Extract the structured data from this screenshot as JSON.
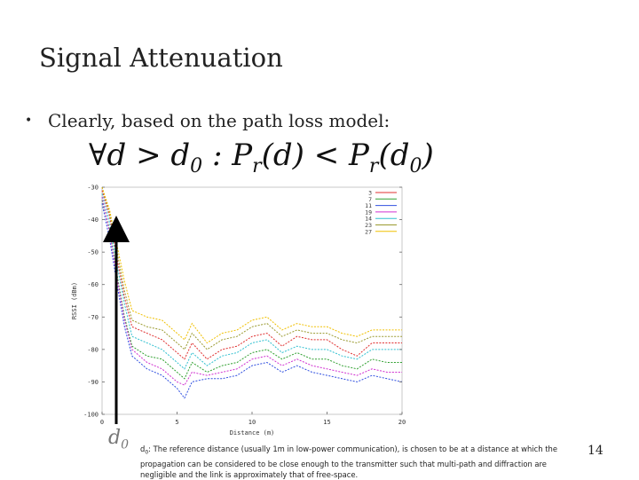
{
  "slide": {
    "title": "Signal Attenuation",
    "bullet": "Clearly, based on the path loss model:",
    "formula": {
      "part1": "∀d > d",
      "part1_sub": "0",
      "part2": " :  P",
      "part2_sub": "r",
      "part3": "(d)  <  P",
      "part3_sub": "r",
      "part4": "(d",
      "part4_sub": "0",
      "part5": ")"
    },
    "d0_label": "d",
    "d0_label_sub": "0",
    "note_prefix": "d",
    "note_prefix_sub": "0",
    "note": ": The reference distance (usually 1m in low-power communication), is chosen to be at a distance at which the propagation can be considered to be close enough to the transmitter such that multi-path and diffraction are negligible and the link is approximately that of free-space.",
    "page_number": "14"
  },
  "chart_data": {
    "type": "line",
    "xlabel": "Distance (m)",
    "ylabel": "RSSI (dBm)",
    "xlim": [
      0,
      20
    ],
    "ylim": [
      -100,
      -30
    ],
    "xticks": [
      "0",
      "5",
      "10",
      "15",
      "20"
    ],
    "yticks": [
      "-30",
      "-40",
      "-50",
      "-60",
      "-70",
      "-80",
      "-90",
      "-100"
    ],
    "x": [
      0,
      0.5,
      1,
      1.5,
      2,
      3,
      4,
      5,
      5.5,
      6,
      7,
      8,
      9,
      10,
      11,
      12,
      13,
      14,
      15,
      16,
      17,
      18,
      19,
      20
    ],
    "series": [
      {
        "name": "3",
        "color": "#e03030",
        "values": [
          -31,
          -39,
          -52,
          -64,
          -73,
          -75,
          -77,
          -81,
          -83,
          -78,
          -83,
          -80,
          -79,
          -76,
          -75,
          -79,
          -76,
          -77,
          -77,
          -80,
          -82,
          -78,
          -78,
          -78
        ]
      },
      {
        "name": "7",
        "color": "#30a030",
        "values": [
          -34,
          -43,
          -57,
          -70,
          -79,
          -82,
          -83,
          -87,
          -89,
          -84,
          -87,
          -85,
          -84,
          -81,
          -80,
          -83,
          -81,
          -83,
          -83,
          -85,
          -86,
          -83,
          -84,
          -84
        ]
      },
      {
        "name": "11",
        "color": "#3050e0",
        "values": [
          -35,
          -46,
          -60,
          -73,
          -82,
          -86,
          -88,
          -92,
          -95,
          -90,
          -89,
          -89,
          -88,
          -85,
          -84,
          -87,
          -85,
          -87,
          -88,
          -89,
          -90,
          -88,
          -89,
          -90
        ]
      },
      {
        "name": "19",
        "color": "#d030d0",
        "values": [
          -33,
          -44,
          -58,
          -71,
          -80,
          -84,
          -86,
          -90,
          -91,
          -87,
          -88,
          -87,
          -86,
          -83,
          -82,
          -85,
          -83,
          -85,
          -86,
          -87,
          -88,
          -86,
          -87,
          -87
        ]
      },
      {
        "name": "14",
        "color": "#30c0d0",
        "values": [
          -32,
          -41,
          -54,
          -66,
          -76,
          -78,
          -80,
          -84,
          -86,
          -81,
          -85,
          -82,
          -81,
          -78,
          -77,
          -81,
          -79,
          -80,
          -80,
          -82,
          -83,
          -80,
          -80,
          -80
        ]
      },
      {
        "name": "23",
        "color": "#9a9a30",
        "values": [
          -30,
          -38,
          -50,
          -62,
          -71,
          -73,
          -74,
          -78,
          -80,
          -75,
          -80,
          -77,
          -76,
          -73,
          -72,
          -76,
          -74,
          -75,
          -75,
          -77,
          -78,
          -76,
          -76,
          -76
        ]
      },
      {
        "name": "27",
        "color": "#f0c000",
        "values": [
          -30,
          -37,
          -48,
          -59,
          -68,
          -70,
          -71,
          -75,
          -77,
          -72,
          -78,
          -75,
          -74,
          -71,
          -70,
          -74,
          -72,
          -73,
          -73,
          -75,
          -76,
          -74,
          -74,
          -74
        ]
      }
    ]
  }
}
